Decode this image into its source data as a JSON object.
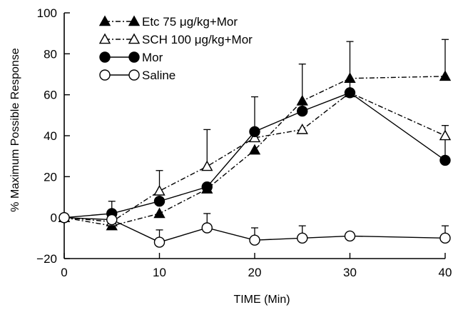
{
  "chart_data": {
    "type": "line",
    "xlabel": "TIME (Min)",
    "ylabel": "% Maximum Possible Response",
    "xlim": [
      0,
      40
    ],
    "ylim": [
      -20,
      100
    ],
    "x_ticks": [
      0,
      10,
      20,
      30,
      40
    ],
    "y_ticks": [
      -20,
      0,
      20,
      40,
      60,
      80,
      100
    ],
    "grid": false,
    "legend_position": "top-left",
    "series": [
      {
        "name": "Etc 75 μg/kg+Mor",
        "marker": "triangle-filled",
        "line": "dash-dot",
        "x": [
          0,
          5,
          10,
          15,
          20,
          25,
          30,
          40
        ],
        "y": [
          0,
          -4,
          2,
          14,
          33,
          57,
          68,
          69
        ],
        "error": [
          0,
          0,
          0,
          0,
          0,
          0,
          0,
          18
        ]
      },
      {
        "name": "SCH 100 μg/kg+Mor",
        "marker": "triangle-open",
        "line": "dash-dot",
        "x": [
          0,
          5,
          10,
          15,
          20,
          25,
          30,
          40
        ],
        "y": [
          0,
          -2,
          13,
          25,
          39,
          43,
          61,
          40
        ],
        "error": [
          0,
          0,
          10,
          18,
          0,
          0,
          0,
          0
        ]
      },
      {
        "name": "Mor",
        "marker": "circle-filled",
        "line": "solid",
        "x": [
          0,
          5,
          10,
          15,
          20,
          25,
          30,
          40
        ],
        "y": [
          0,
          2,
          8,
          15,
          42,
          52,
          61,
          28
        ],
        "error": [
          0,
          6,
          0,
          0,
          17,
          23,
          25,
          17
        ]
      },
      {
        "name": "Saline",
        "marker": "circle-open",
        "line": "solid",
        "x": [
          0,
          5,
          10,
          15,
          20,
          25,
          30,
          40
        ],
        "y": [
          0,
          -1,
          -12,
          -5,
          -11,
          -10,
          -9,
          -10
        ],
        "error": [
          0,
          0,
          6,
          7,
          6,
          6,
          0,
          6
        ]
      }
    ]
  }
}
